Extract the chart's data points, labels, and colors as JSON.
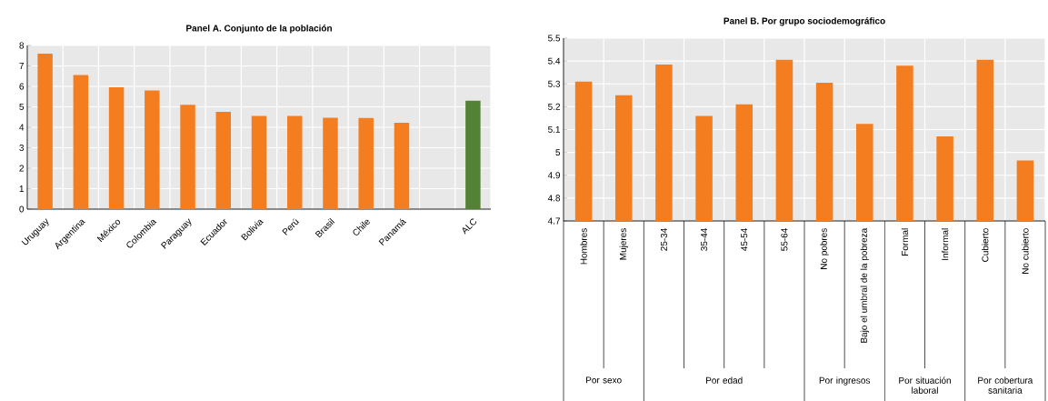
{
  "chart_data": [
    {
      "type": "bar",
      "title": "Panel A. Conjunto de la población",
      "categories": [
        "Uruguay",
        "Argentina",
        "México",
        "Colombia",
        "Paraguay",
        "Ecuador",
        "Bolivia",
        "Perú",
        "Brasil",
        "Chile",
        "Panamá",
        null,
        "ALC"
      ],
      "values": [
        7.6,
        6.55,
        5.95,
        5.8,
        5.1,
        4.75,
        4.55,
        4.55,
        4.47,
        4.45,
        4.22,
        null,
        5.3
      ],
      "colors": [
        "#f47d20",
        "#f47d20",
        "#f47d20",
        "#f47d20",
        "#f47d20",
        "#f47d20",
        "#f47d20",
        "#f47d20",
        "#f47d20",
        "#f47d20",
        "#f47d20",
        "#f47d20",
        "#538135"
      ],
      "ylim": [
        0,
        8
      ],
      "yticks": [
        0,
        1,
        2,
        3,
        4,
        5,
        6,
        7,
        8
      ],
      "grid": true
    },
    {
      "type": "bar",
      "title": "Panel B. Por grupo sociodemográfico",
      "categories": [
        "Hombres",
        "Mujeres",
        "25-34",
        "35-44",
        "45-54",
        "55-64",
        "No pobres",
        "Bajo el umbral de la pobreza",
        "Formal",
        "Informal",
        "Cubierto",
        "No cubierto"
      ],
      "values": [
        5.31,
        5.25,
        5.385,
        5.16,
        5.21,
        5.405,
        5.305,
        5.125,
        5.38,
        5.07,
        5.405,
        4.965
      ],
      "color": "#f47d20",
      "ylim": [
        4.7,
        5.5
      ],
      "yticks": [
        4.7,
        4.8,
        4.9,
        5,
        5.1,
        5.2,
        5.3,
        5.4,
        5.5
      ],
      "grid": true,
      "annotations": [
        "Por sexo",
        "Por edad",
        "Por ingresos",
        "Por situación laboral",
        "Por cobertura sanitaria"
      ]
    }
  ]
}
